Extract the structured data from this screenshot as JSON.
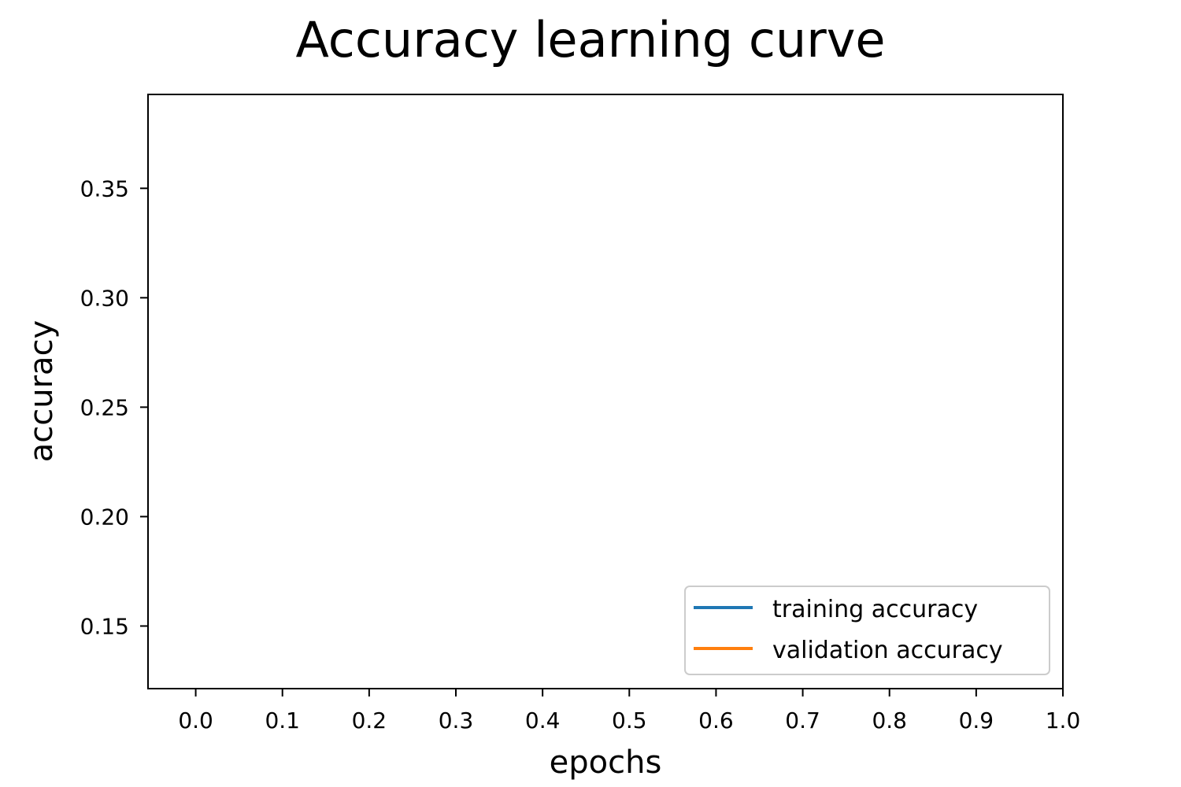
{
  "chart_data": {
    "type": "line",
    "title": "Accuracy learning curve",
    "xlabel": "epochs",
    "ylabel": "accuracy",
    "xlim": [
      -0.055,
      1.0
    ],
    "ylim": [
      0.1214,
      0.3929
    ],
    "xticks": [
      0.0,
      0.1,
      0.2,
      0.3,
      0.4,
      0.5,
      0.6,
      0.7,
      0.8,
      0.9,
      1.0
    ],
    "xtick_labels": [
      "0.0",
      "0.1",
      "0.2",
      "0.3",
      "0.4",
      "0.5",
      "0.6",
      "0.7",
      "0.8",
      "0.9",
      "1.0"
    ],
    "yticks": [
      0.15,
      0.2,
      0.25,
      0.3,
      0.35
    ],
    "ytick_labels": [
      "0.15",
      "0.20",
      "0.25",
      "0.30",
      "0.35"
    ],
    "grid": false,
    "legend_position": "lower-right",
    "series": [
      {
        "name": "training accuracy",
        "color": "#1f77b4",
        "x": [],
        "y": []
      },
      {
        "name": "validation accuracy",
        "color": "#ff7f0e",
        "x": [],
        "y": []
      }
    ]
  }
}
